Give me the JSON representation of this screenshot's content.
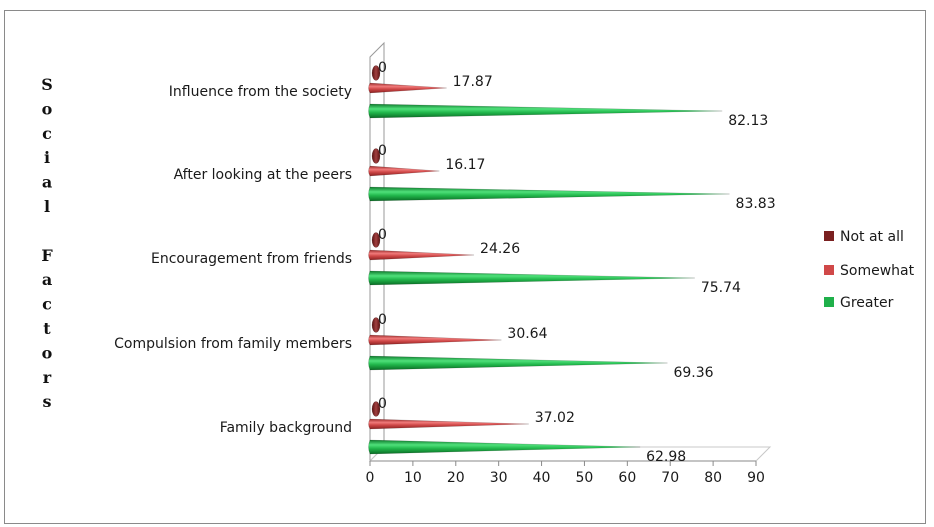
{
  "chart_data": {
    "type": "bar",
    "orientation": "horizontal",
    "style": "3d-cone",
    "categories": [
      "Influence from the society",
      "After looking at the peers",
      "Encouragement from friends",
      "Compulsion from family members",
      "Family background"
    ],
    "series": [
      {
        "name": "Not at all",
        "color": "#7a2020",
        "values": [
          0,
          0,
          0,
          0,
          0
        ]
      },
      {
        "name": "Somewhat",
        "color": "#d04848",
        "values": [
          17.87,
          16.17,
          24.26,
          30.64,
          37.02
        ]
      },
      {
        "name": "Greater",
        "color": "#1fb04a",
        "values": [
          82.13,
          83.83,
          75.74,
          69.36,
          62.98
        ]
      }
    ],
    "value_labels": {
      "Not at all": [
        "0",
        "0",
        "0",
        "0",
        "0"
      ],
      "Somewhat": [
        "17.87",
        "16.17",
        "24.26",
        "30.64",
        "37.02"
      ],
      "Greater": [
        "82.13",
        "83.83",
        "75.74",
        "69.36",
        "62.98"
      ]
    },
    "xlim": [
      0,
      90
    ],
    "xticks": [
      0,
      10,
      20,
      30,
      40,
      50,
      60,
      70,
      80,
      90
    ],
    "xtick_labels": [
      "0",
      "10",
      "20",
      "30",
      "40",
      "50",
      "60",
      "70",
      "80",
      "90"
    ],
    "ylabel": "Social Factors",
    "ylabel_chars": [
      "S",
      "o",
      "c",
      "i",
      "a",
      "l",
      "",
      "F",
      "a",
      "c",
      "t",
      "o",
      "r",
      "s"
    ],
    "legend_position": "right",
    "grid": false
  }
}
